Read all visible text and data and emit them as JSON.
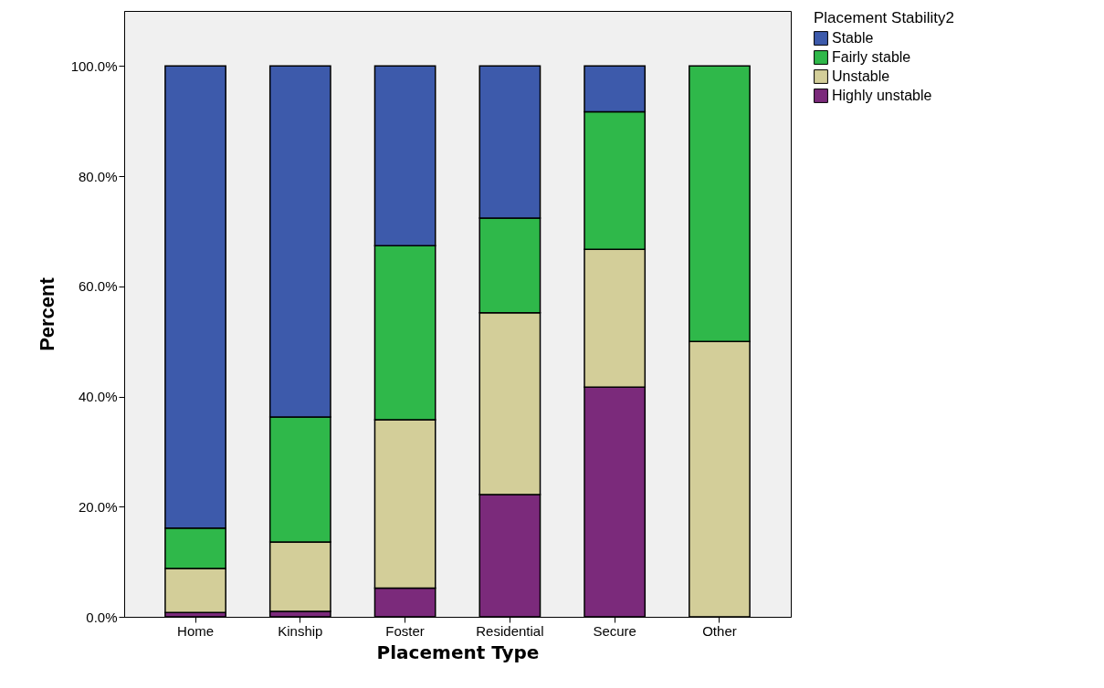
{
  "chart_data": {
    "type": "bar",
    "stacked": true,
    "xlabel": "Placement Type",
    "ylabel": "Percent",
    "legend_title": "Placement Stability2",
    "legend": "top right",
    "grid": false,
    "categories": [
      "Home",
      "Kinship",
      "Foster",
      "Residential",
      "Secure",
      "Other"
    ],
    "ylim": [
      0,
      110
    ],
    "yticks": [
      {
        "value": 0,
        "label": "0.0%"
      },
      {
        "value": 20,
        "label": "20.0%"
      },
      {
        "value": 40,
        "label": "40.0%"
      },
      {
        "value": 60,
        "label": "60.0%"
      },
      {
        "value": 80,
        "label": "80.0%"
      },
      {
        "value": 100,
        "label": "100.0%"
      }
    ],
    "series": [
      {
        "name": "Highly unstable",
        "color": "#7b2a7b",
        "values": [
          0.8,
          1.0,
          5.2,
          22.2,
          41.7,
          null
        ]
      },
      {
        "name": "Unstable",
        "color": "#d3ce99",
        "values": [
          8.0,
          12.6,
          30.6,
          33.0,
          25.0,
          50
        ]
      },
      {
        "name": "Fairly stable",
        "color": "#2fb84a",
        "values": [
          7.3,
          22.7,
          31.6,
          17.2,
          25.0,
          50
        ]
      },
      {
        "name": "Stable",
        "color": "#3d5aab",
        "values": [
          83.9,
          63.7,
          32.6,
          27.6,
          8.3,
          null
        ]
      }
    ]
  }
}
